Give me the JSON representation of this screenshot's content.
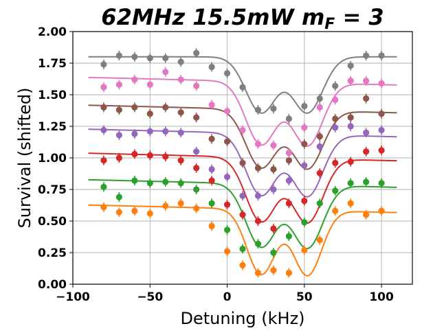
{
  "chart_data": {
    "type": "scatter",
    "title": "62MHz 15.5mW m",
    "title_subscript": "F",
    "title_suffix": " = 3",
    "xlabel": "Detuning (kHz)",
    "ylabel": "Survival (shifted)",
    "xlim": [
      -100,
      120
    ],
    "ylim": [
      0.0,
      2.0
    ],
    "xticks": [
      -100,
      -50,
      0,
      50,
      100
    ],
    "yticks": [
      0.0,
      0.25,
      0.5,
      0.75,
      1.0,
      1.25,
      1.5,
      1.75,
      2.0
    ],
    "xtick_labels": [
      "−100",
      "−50",
      "0",
      "50",
      "100"
    ],
    "ytick_labels": [
      "0.00",
      "0.25",
      "0.50",
      "0.75",
      "1.00",
      "1.25",
      "1.50",
      "1.75",
      "2.00"
    ],
    "grid": true,
    "x": [
      -80,
      -70,
      -60,
      -50,
      -40,
      -30,
      -20,
      -10,
      0,
      10,
      20,
      30,
      40,
      50,
      60,
      70,
      80,
      90,
      100
    ],
    "fit_x_range": [
      -90,
      110
    ],
    "series": [
      {
        "color": "#ff7f0e",
        "y": [
          0.61,
          0.57,
          0.58,
          0.56,
          0.62,
          0.64,
          0.6,
          0.46,
          0.26,
          0.15,
          0.09,
          0.11,
          0.09,
          0.27,
          0.35,
          0.58,
          0.64,
          0.55,
          0.58
        ],
        "fit": {
          "baseline": 0.6,
          "depth": 0.56,
          "centers": [
            22,
            52
          ],
          "width": 13,
          "slope": -0.0003
        }
      },
      {
        "color": "#2ca02c",
        "y": [
          0.77,
          0.69,
          0.82,
          0.8,
          0.81,
          0.8,
          0.75,
          0.64,
          0.43,
          0.28,
          0.32,
          0.25,
          0.38,
          0.49,
          0.64,
          0.74,
          0.8,
          0.81,
          0.8
        ],
        "fit": {
          "baseline": 0.8,
          "depth": 0.54,
          "centers": [
            22,
            52
          ],
          "width": 14,
          "slope": -0.0003
        }
      },
      {
        "color": "#d62728",
        "y": [
          0.98,
          1.0,
          1.03,
          1.02,
          1.01,
          0.98,
          0.92,
          0.82,
          0.63,
          0.55,
          0.5,
          0.44,
          0.64,
          0.66,
          0.88,
          0.96,
          0.97,
          1.05,
          1.06
        ],
        "fit": {
          "baseline": 1.01,
          "depth": 0.55,
          "centers": [
            22,
            52
          ],
          "width": 14,
          "slope": -0.0003
        }
      },
      {
        "color": "#9467bd",
        "y": [
          1.22,
          1.18,
          1.19,
          1.21,
          1.21,
          1.2,
          1.05,
          0.91,
          0.85,
          0.7,
          0.7,
          0.75,
          0.82,
          0.94,
          1.09,
          1.24,
          1.25,
          1.2,
          1.22
        ],
        "fit": {
          "baseline": 1.2,
          "depth": 0.53,
          "centers": [
            22,
            52
          ],
          "width": 14,
          "slope": -0.0003
        }
      },
      {
        "color": "#8c564b",
        "y": [
          1.4,
          1.38,
          1.4,
          1.35,
          1.4,
          1.36,
          1.32,
          1.15,
          1.13,
          0.96,
          0.92,
          0.91,
          0.98,
          1.11,
          1.17,
          1.31,
          1.32,
          1.47,
          1.35
        ],
        "fit": {
          "baseline": 1.39,
          "depth": 0.5,
          "centers": [
            22,
            52
          ],
          "width": 14,
          "slope": -0.0003
        }
      },
      {
        "color": "#e377c2",
        "y": [
          1.56,
          1.58,
          1.62,
          1.58,
          1.68,
          1.62,
          1.57,
          1.42,
          1.37,
          1.22,
          1.11,
          1.1,
          1.04,
          1.24,
          1.4,
          1.46,
          1.61,
          1.61,
          1.59
        ],
        "fit": {
          "baseline": 1.61,
          "depth": 0.54,
          "centers": [
            22,
            52
          ],
          "width": 14,
          "slope": -0.0003
        }
      },
      {
        "color": "#7f7f7f",
        "y": [
          1.74,
          1.81,
          1.8,
          1.79,
          1.79,
          1.76,
          1.83,
          1.72,
          1.67,
          1.56,
          1.38,
          1.39,
          1.31,
          1.41,
          1.47,
          1.57,
          1.73,
          1.81,
          1.81
        ],
        "fit": {
          "baseline": 1.8,
          "depth": 0.48,
          "centers": [
            22,
            52
          ],
          "width": 14,
          "slope": 0.0
        }
      }
    ]
  }
}
